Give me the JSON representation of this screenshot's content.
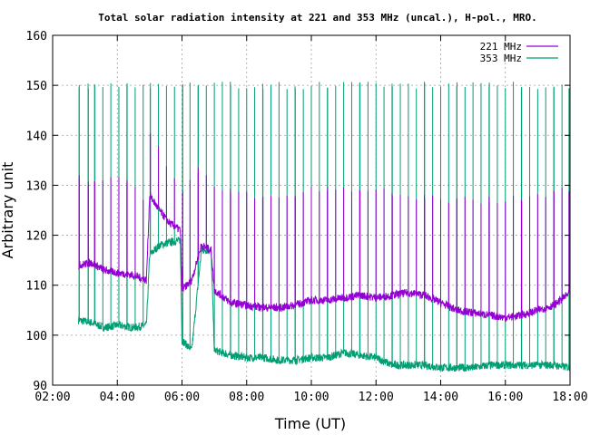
{
  "chart_data": {
    "type": "line",
    "title": "Total solar radiation intensity at 221 and 353 MHz (uncal.), H-pol., MRO.",
    "xlabel": "Time (UT)",
    "ylabel": "Arbitrary unit",
    "xlim": [
      2,
      18
    ],
    "ylim": [
      90,
      160
    ],
    "x_ticks": [
      2,
      4,
      6,
      8,
      10,
      12,
      14,
      16,
      18
    ],
    "x_tick_labels": [
      "02:00",
      "04:00",
      "06:00",
      "08:00",
      "10:00",
      "12:00",
      "14:00",
      "16:00",
      "18:00"
    ],
    "y_ticks": [
      90,
      100,
      110,
      120,
      130,
      140,
      150,
      160
    ],
    "y_tick_labels": [
      "90",
      "100",
      "110",
      "120",
      "130",
      "140",
      "150",
      "160"
    ],
    "grid": true,
    "legend_position": "top-right",
    "series": [
      {
        "name": "221 MHz",
        "color": "#9400d3",
        "baseline": [
          [
            2.8,
            114
          ],
          [
            3.2,
            114.5
          ],
          [
            3.6,
            113
          ],
          [
            4.0,
            112.5
          ],
          [
            4.5,
            112
          ],
          [
            4.9,
            111
          ],
          [
            5.0,
            128
          ],
          [
            5.3,
            125
          ],
          [
            5.6,
            122.5
          ],
          [
            5.95,
            121
          ],
          [
            6.0,
            109
          ],
          [
            6.3,
            111
          ],
          [
            6.6,
            118
          ],
          [
            6.9,
            117
          ],
          [
            7.0,
            109
          ],
          [
            7.5,
            106.5
          ],
          [
            8.0,
            106
          ],
          [
            8.5,
            105.5
          ],
          [
            9.0,
            105.5
          ],
          [
            9.5,
            106
          ],
          [
            10.0,
            107
          ],
          [
            10.5,
            107
          ],
          [
            11.0,
            107.5
          ],
          [
            11.5,
            108
          ],
          [
            12.0,
            107.5
          ],
          [
            12.5,
            108
          ],
          [
            13.0,
            108.5
          ],
          [
            13.5,
            108
          ],
          [
            14.0,
            106.5
          ],
          [
            14.5,
            105
          ],
          [
            15.0,
            104.5
          ],
          [
            15.5,
            104
          ],
          [
            16.0,
            103.5
          ],
          [
            16.5,
            104
          ],
          [
            17.0,
            105
          ],
          [
            17.5,
            106
          ],
          [
            18.0,
            108.5
          ]
        ],
        "pulse_peak": [
          [
            2.8,
            132
          ],
          [
            3.2,
            130
          ],
          [
            3.6,
            131
          ],
          [
            4.0,
            131
          ],
          [
            4.5,
            130
          ],
          [
            4.9,
            127
          ],
          [
            5.0,
            141
          ],
          [
            5.3,
            137
          ],
          [
            5.6,
            133
          ],
          [
            5.95,
            130
          ],
          [
            6.0,
            128
          ],
          [
            6.5,
            133
          ],
          [
            7.0,
            130
          ],
          [
            8.0,
            128
          ],
          [
            9.0,
            128
          ],
          [
            10.0,
            129
          ],
          [
            11.0,
            129
          ],
          [
            12.0,
            129
          ],
          [
            13.0,
            128
          ],
          [
            14.0,
            127
          ],
          [
            15.0,
            127
          ],
          [
            16.0,
            127
          ],
          [
            17.0,
            128
          ],
          [
            18.0,
            129
          ]
        ]
      },
      {
        "name": "353 MHz",
        "color": "#009e73",
        "baseline": [
          [
            2.8,
            103
          ],
          [
            3.2,
            102.5
          ],
          [
            3.6,
            101.5
          ],
          [
            4.0,
            102
          ],
          [
            4.5,
            101.5
          ],
          [
            4.9,
            102
          ],
          [
            5.0,
            116
          ],
          [
            5.3,
            118
          ],
          [
            5.6,
            118.5
          ],
          [
            5.95,
            119
          ],
          [
            6.0,
            99
          ],
          [
            6.3,
            97
          ],
          [
            6.6,
            117
          ],
          [
            6.9,
            117
          ],
          [
            7.0,
            97
          ],
          [
            7.5,
            96
          ],
          [
            8.0,
            95.5
          ],
          [
            8.5,
            95.5
          ],
          [
            9.0,
            95
          ],
          [
            9.5,
            95
          ],
          [
            10.0,
            95.5
          ],
          [
            10.5,
            95.5
          ],
          [
            11.0,
            96.5
          ],
          [
            11.5,
            96
          ],
          [
            12.0,
            95.5
          ],
          [
            12.5,
            94
          ],
          [
            13.0,
            94
          ],
          [
            13.5,
            94
          ],
          [
            14.0,
            93.5
          ],
          [
            14.5,
            93.5
          ],
          [
            15.0,
            93.5
          ],
          [
            15.5,
            94
          ],
          [
            16.0,
            94
          ],
          [
            16.5,
            94
          ],
          [
            17.0,
            94
          ],
          [
            17.5,
            94
          ],
          [
            18.0,
            93.5
          ]
        ],
        "pulse_peak": 150
      }
    ],
    "pulse_times": [
      2.82,
      3.1,
      3.3,
      3.55,
      3.8,
      4.05,
      4.3,
      4.55,
      4.8,
      5.02,
      5.27,
      5.52,
      5.77,
      6.02,
      6.25,
      6.5,
      6.75,
      7.0,
      7.25,
      7.5,
      7.75,
      8.0,
      8.25,
      8.5,
      8.75,
      9.0,
      9.25,
      9.5,
      9.75,
      10.0,
      10.25,
      10.5,
      10.75,
      11.0,
      11.25,
      11.5,
      11.75,
      12.0,
      12.25,
      12.5,
      12.75,
      13.0,
      13.25,
      13.5,
      13.75,
      14.0,
      14.25,
      14.5,
      14.75,
      15.0,
      15.25,
      15.5,
      15.75,
      16.0,
      16.25,
      16.5,
      16.75,
      17.0,
      17.25,
      17.5,
      17.75,
      17.97
    ]
  }
}
